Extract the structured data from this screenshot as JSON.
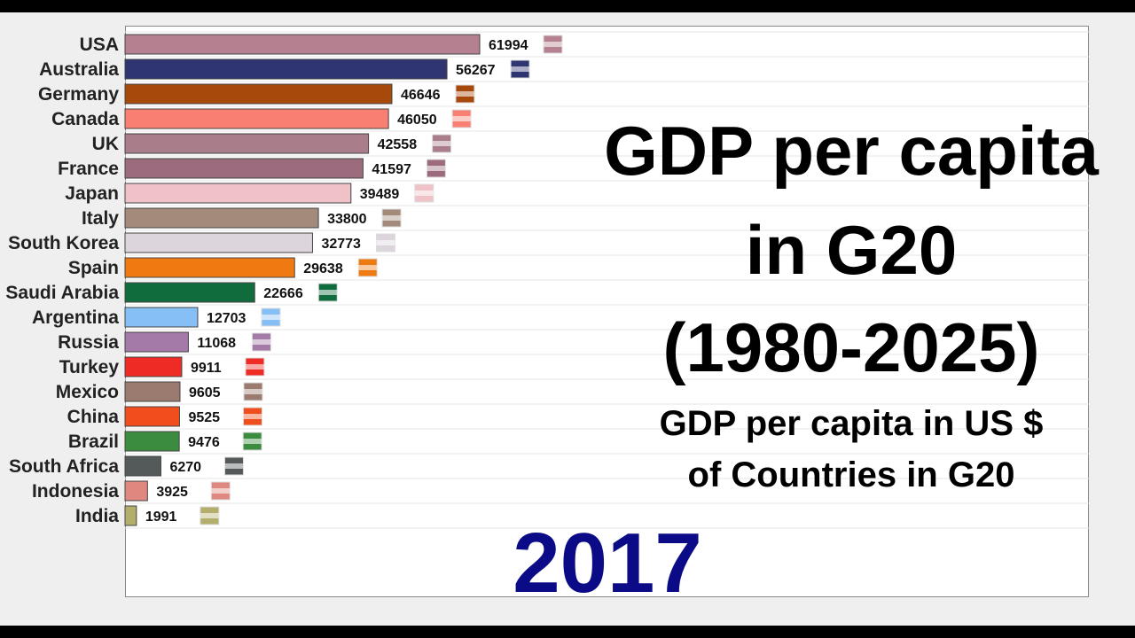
{
  "chart_data": {
    "type": "bar",
    "orientation": "horizontal",
    "title": "GDP per capita in G20",
    "title_period": "(1980-2025)",
    "subtitle_line1": "GDP per capita in US $",
    "subtitle_line2": "of Countries in G20",
    "year": "2017",
    "categories": [
      "USA",
      "Australia",
      "Germany",
      "Canada",
      "UK",
      "France",
      "Japan",
      "Italy",
      "South Korea",
      "Spain",
      "Saudi Arabia",
      "Argentina",
      "Russia",
      "Turkey",
      "Mexico",
      "China",
      "Brazil",
      "South Africa",
      "Indonesia",
      "India"
    ],
    "values": [
      61994,
      56267,
      46646,
      46050,
      42558,
      41597,
      39489,
      33800,
      32773,
      29638,
      22666,
      12703,
      11068,
      9911,
      9605,
      9525,
      9476,
      6270,
      3925,
      1991
    ],
    "colors": [
      "#b5808f",
      "#2e3570",
      "#a6490a",
      "#f87f72",
      "#a97d8a",
      "#9d6b7e",
      "#efc2c8",
      "#a48a7b",
      "#dcd5db",
      "#f07a12",
      "#106b3d",
      "#85bff5",
      "#a37aa8",
      "#ef2b25",
      "#9b7b70",
      "#f04e1c",
      "#3b8c3e",
      "#545a5a",
      "#e08780",
      "#b3ae6b"
    ],
    "flags": [
      "usa-flag",
      "australia-flag",
      "germany-flag",
      "canada-flag",
      "uk-flag",
      "france-flag",
      "japan-flag",
      "italy-flag",
      "south-korea-flag",
      "spain-flag",
      "saudi-arabia-flag",
      "argentina-flag",
      "russia-flag",
      "turkey-flag",
      "mexico-flag",
      "china-flag",
      "brazil-flag",
      "south-africa-flag",
      "indonesia-flag",
      "india-flag"
    ],
    "xlim": [
      0,
      61994
    ]
  }
}
